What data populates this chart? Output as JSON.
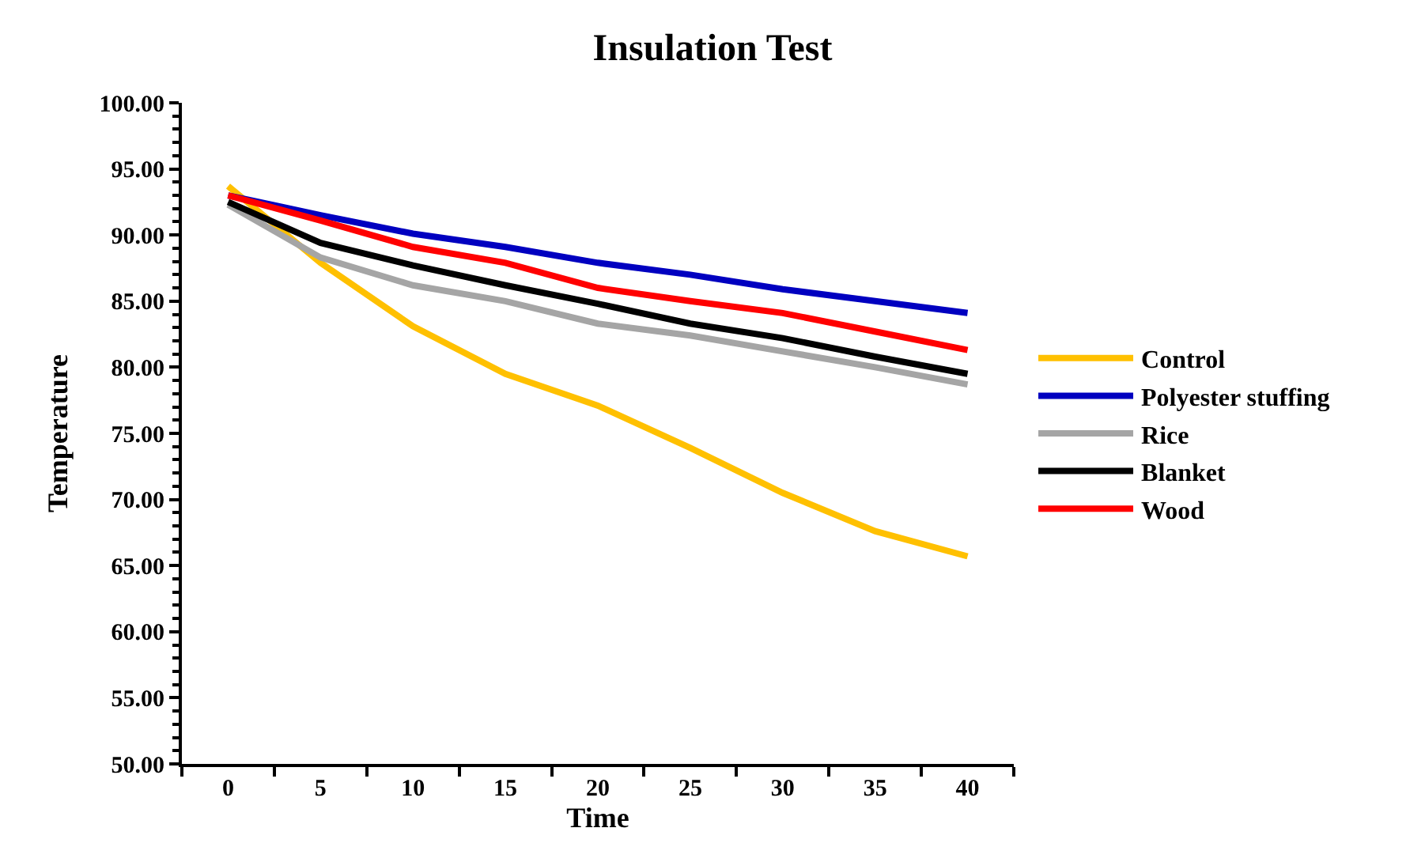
{
  "chart_data": {
    "type": "line",
    "title": "Insulation Test",
    "xlabel": "Time",
    "ylabel": "Temperature",
    "categories": [
      "0",
      "5",
      "10",
      "15",
      "20",
      "25",
      "30",
      "35",
      "40"
    ],
    "series": [
      {
        "name": "Control",
        "color": "#ffc000",
        "values": [
          93.7,
          87.9,
          83.1,
          79.5,
          77.1,
          73.9,
          70.5,
          67.6,
          65.7
        ]
      },
      {
        "name": "Polyester stuffing",
        "color": "#0000c0",
        "values": [
          93.0,
          91.5,
          90.1,
          89.1,
          87.9,
          87.0,
          85.9,
          85.0,
          84.1
        ]
      },
      {
        "name": "Rice",
        "color": "#a5a5a5",
        "values": [
          92.3,
          88.3,
          86.2,
          85.0,
          83.3,
          82.4,
          81.2,
          80.0,
          78.7
        ]
      },
      {
        "name": "Blanket",
        "color": "#000000",
        "values": [
          92.5,
          89.4,
          87.7,
          86.2,
          84.8,
          83.3,
          82.2,
          80.8,
          79.5
        ]
      },
      {
        "name": "Wood",
        "color": "#ff0000",
        "values": [
          93.0,
          91.1,
          89.1,
          87.9,
          86.0,
          85.0,
          84.1,
          82.7,
          81.3
        ]
      }
    ],
    "ylim": [
      50,
      100
    ],
    "yticks": [
      {
        "value": 50,
        "label": "50.00"
      },
      {
        "value": 55,
        "label": "55.00"
      },
      {
        "value": 60,
        "label": "60.00"
      },
      {
        "value": 65,
        "label": "65.00"
      },
      {
        "value": 70,
        "label": "70.00"
      },
      {
        "value": 75,
        "label": "75.00"
      },
      {
        "value": 80,
        "label": "80.00"
      },
      {
        "value": 85,
        "label": "85.00"
      },
      {
        "value": 90,
        "label": "90.00"
      },
      {
        "value": 95,
        "label": "95.00"
      },
      {
        "value": 100,
        "label": "100.00"
      }
    ],
    "legend": "right",
    "marker": "none",
    "line_style": "solid"
  }
}
